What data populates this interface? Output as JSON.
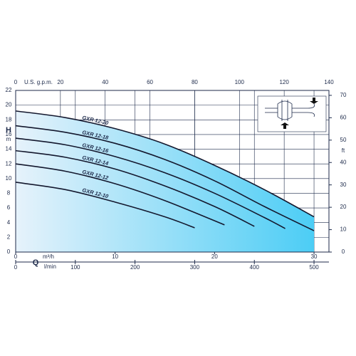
{
  "chart_data": {
    "type": "line",
    "x_label": "Q",
    "x_unit": "m³/h",
    "xlim": [
      0,
      31.5
    ],
    "xticks": [
      0,
      10,
      20,
      30
    ],
    "x3_unit": "l/min",
    "x3lim": [
      0,
      525
    ],
    "x3ticks": [
      0,
      100,
      200,
      300,
      400,
      500
    ],
    "x2_unit": "U.S. g.p.m.",
    "x2lim": [
      0,
      140
    ],
    "x2ticks": [
      0,
      20,
      40,
      60,
      80,
      100,
      120,
      140
    ],
    "y_label": "H",
    "y_unit": "m",
    "ylim": [
      0,
      22
    ],
    "yticks": [
      0,
      2,
      4,
      6,
      8,
      10,
      12,
      14,
      16,
      18,
      20,
      22
    ],
    "y2_unit": "ft",
    "y2lim": [
      0,
      72.2
    ],
    "y2ticks": [
      0,
      10,
      20,
      30,
      40,
      50,
      60,
      70
    ],
    "grid": true,
    "series": [
      {
        "name": "GXR 12-20",
        "color": "#14182e",
        "filled": true,
        "x": [
          0,
          5,
          10,
          15,
          20,
          25,
          30
        ],
        "values": [
          19.2,
          18.3,
          16.8,
          14.7,
          11.8,
          8.5,
          4.8
        ]
      },
      {
        "name": "GXR 12-18",
        "color": "#14182e",
        "x": [
          0,
          5,
          10,
          15,
          20,
          25,
          30
        ],
        "values": [
          17.2,
          16.3,
          14.8,
          12.6,
          9.7,
          6.2,
          2.9
        ]
      },
      {
        "name": "GXR 12-16",
        "color": "#14182e",
        "x": [
          0,
          5,
          10,
          15,
          20,
          25,
          27.1
        ],
        "values": [
          15.5,
          14.6,
          13.0,
          10.8,
          8.0,
          4.7,
          3.2
        ]
      },
      {
        "name": "GXR 12-14",
        "color": "#14182e",
        "x": [
          0,
          5,
          10,
          15,
          20,
          24
        ],
        "values": [
          13.8,
          12.9,
          11.3,
          9.0,
          6.2,
          3.5
        ]
      },
      {
        "name": "GXR 12-12",
        "color": "#14182e",
        "x": [
          0,
          5,
          10,
          15,
          21
        ],
        "values": [
          12.0,
          11.0,
          9.3,
          7.0,
          3.7
        ]
      },
      {
        "name": "GXR 12-10",
        "color": "#14182e",
        "x": [
          0,
          5,
          10,
          15,
          18
        ],
        "values": [
          9.5,
          8.5,
          6.8,
          4.8,
          3.3
        ]
      }
    ]
  }
}
